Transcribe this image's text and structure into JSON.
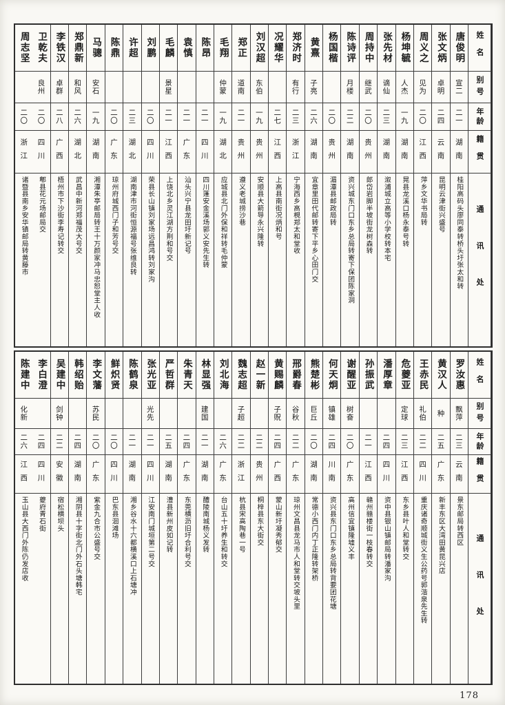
{
  "page_number": "178",
  "headers": {
    "name": "姓名",
    "alias": "别号",
    "age": "年龄",
    "native": "籍贯",
    "address": "通讯处"
  },
  "tables": [
    {
      "people": [
        {
          "name": "唐俊明",
          "alias": "宣二",
          "age": "二一",
          "native": "湖南",
          "address": "桂阳高码头廖同泰转桥头圩张太和转"
        },
        {
          "name": "张文炳",
          "alias": "卓明",
          "age": "二四",
          "native": "云南",
          "address": "昆明云津街兴盛号"
        },
        {
          "name": "周义之",
          "alias": "见为",
          "age": "二〇",
          "native": "江西",
          "address": "萍乡文华书局转"
        },
        {
          "name": "杨坤毓",
          "alias": "人杰",
          "age": "一九",
          "native": "湖南",
          "address": "晃县龙溪口杨永泰号转"
        },
        {
          "name": "张先材",
          "alias": "谪仙",
          "age": "二三",
          "native": "湖南",
          "address": "溆浦城立高等小学校转本宅"
        },
        {
          "name": "周持中",
          "alias": "继武",
          "age": "二〇",
          "native": "贵州",
          "address": "郎岱岩脚半坡街龙树森转"
        },
        {
          "name": "陈诗评",
          "alias": "月楼",
          "age": "二二",
          "native": "湖南",
          "address": "资兴城东门口东乡总局转寄下保团陈家洞"
        },
        {
          "name": "杨国楷",
          "alias": "",
          "age": "二〇",
          "native": "贵州",
          "address": "湄潭县邮政局转"
        },
        {
          "name": "黄熹",
          "alias": "子亮",
          "age": "二六",
          "native": "湖南",
          "address": "宜章里田代邮转寄下平乡心田门交"
        },
        {
          "name": "郑济时",
          "alias": "有行",
          "age": "二三",
          "native": "浙江",
          "address": "宁海西乡高梘郑太和堂收"
        },
        {
          "name": "况耀华",
          "alias": "",
          "age": "二七",
          "native": "江西",
          "address": "上高县南街况炳和号"
        },
        {
          "name": "刘汉超",
          "alias": "东伯",
          "age": "一九",
          "native": "贵州",
          "address": "安顺县大箭导永兴隆转"
        },
        {
          "name": "郑正",
          "alias": "道南",
          "age": "二一",
          "native": "贵州",
          "address": "遵义老城捞沙巷"
        },
        {
          "name": "毛翔",
          "alias": "仲蒙",
          "age": "一九",
          "native": "湖北",
          "address": "应城县北门外保和祥转毛仲蒙"
        },
        {
          "name": "陈昂",
          "alias": "",
          "age": "二一",
          "native": "四川",
          "address": "四川蓬安金溪场郭义安先生转"
        },
        {
          "name": "袁慎",
          "alias": "",
          "age": "二一",
          "native": "广东",
          "address": "汕头兴宁县龙田圩新记号"
        },
        {
          "name": "毛麟",
          "alias": "景星",
          "age": "二一",
          "native": "江西",
          "address": "上饶北乡灵江湖方荆和号交"
        },
        {
          "name": "刘鹏",
          "alias": "",
          "age": "二〇",
          "native": "四川",
          "address": "荣县长山镇刘家场远昌鸿转刘家沟"
        },
        {
          "name": "许超",
          "alias": "",
          "age": "二三",
          "native": "湖北",
          "address": "湖南津市河街恒源福号张维良转"
        },
        {
          "name": "陈鼎",
          "alias": "",
          "age": "二〇",
          "native": "广东",
          "address": "琼州府城西门子和芳号交"
        },
        {
          "name": "马骢",
          "alias": "安石",
          "age": "一九",
          "native": "湖南",
          "address": "湘潭朱亭邮局转王十万颜家冲马忠恕堂主人收"
        },
        {
          "name": "郑鼎新",
          "alias": "和风",
          "age": "二六",
          "native": "湖北",
          "address": "武昌中新河郑福茂大号交"
        },
        {
          "name": "李铁汉",
          "alias": "卓群",
          "age": "二八",
          "native": "广西",
          "address": "梧州市下沙街李寿记转交"
        },
        {
          "name": "卫乾夫",
          "alias": "良州",
          "age": "二〇",
          "native": "四川",
          "address": "郫县花元场邮局交"
        },
        {
          "name": "周志坚",
          "alias": "",
          "age": "二〇",
          "native": "浙江",
          "address": "诸暨县南乡安华镇邮局转黄藤市"
        }
      ]
    },
    {
      "people": [
        {
          "name": "罗汝惠",
          "alias": "飘萍",
          "age": "二三",
          "native": "云南",
          "address": "景东邮局转西区"
        },
        {
          "name": "黄汉人",
          "alias": "种",
          "age": "二五",
          "native": "广东",
          "address": "新丰东区大湾田黄昆兴店"
        },
        {
          "name": "王赤民",
          "alias": "礼伯",
          "age": "二二",
          "native": "四川",
          "address": "重庆诸奇顺城街义生公药号郭湝泉先生转"
        },
        {
          "name": "危夔亚",
          "alias": "定球",
          "age": "二三",
          "native": "江西",
          "address": "东乡县叶人和堂转交"
        },
        {
          "name": "潘厚章",
          "alias": "",
          "age": "二四",
          "native": "四川",
          "address": "资中县银山镇邮局转潘家沟"
        },
        {
          "name": "孙振武",
          "alias": "",
          "age": "二一",
          "native": "江西",
          "address": "赣州赣楼街一枝春转交"
        },
        {
          "name": "谢醒亚",
          "alias": "树奋",
          "age": "二〇",
          "native": "广东",
          "address": "高州信宜镇隆墟义丰"
        },
        {
          "name": "何天炯",
          "alias": "镇雄",
          "age": "二四",
          "native": "川南",
          "address": "资兴县东门口东乡总局转背要团花塘"
        },
        {
          "name": "熊楚彬",
          "alias": "巨丘",
          "age": "二〇",
          "native": "湖南",
          "address": "常德小西门内丁正隆转架桥"
        },
        {
          "name": "邢爵春",
          "alias": "谷秋",
          "age": "二二",
          "native": "广东",
          "address": "琼州文昌县龙马市人和堂转交坡头里"
        },
        {
          "name": "黄赐麟",
          "alias": "子贶",
          "age": "二四",
          "native": "广西",
          "address": "蒙山新圩凝秀郁交"
        },
        {
          "name": "赵一新",
          "alias": "",
          "age": "二二",
          "native": "贵州",
          "address": "桐梓县东大街交"
        },
        {
          "name": "魏志超",
          "alias": "子超",
          "age": "二二",
          "native": "浙江",
          "address": "杭县宋高陶巷一号"
        },
        {
          "name": "刘北海",
          "alias": "",
          "age": "二六",
          "native": "广东",
          "address": "台山五十圩养生和转交"
        },
        {
          "name": "林显强",
          "alias": "建国",
          "age": "二一",
          "native": "湖南",
          "address": "醴陵南城杨义发转"
        },
        {
          "name": "朱青天",
          "alias": "",
          "age": "二四",
          "native": "广东",
          "address": "东莞横沥旧圩合利号交"
        },
        {
          "name": "严哲群",
          "alias": "",
          "age": "二五",
          "native": "湖南",
          "address": "澧县新州皮如记转"
        },
        {
          "name": "张光亚",
          "alias": "光先",
          "age": "二一",
          "native": "四川",
          "address": "江安南门城垣第二号交"
        },
        {
          "name": "陈鹤泉",
          "alias": "",
          "age": "二一",
          "native": "湖南",
          "address": "湘乡谷水十六都横溪口上石塘冲"
        },
        {
          "name": "鲜炽贤",
          "alias": "",
          "age": "二〇",
          "native": "四川",
          "address": "巴东县洄滩场"
        },
        {
          "name": "李文藩",
          "alias": "苏民",
          "age": "二〇",
          "native": "广东",
          "address": "紫金九合市公盛号交"
        },
        {
          "name": "韩绍贻",
          "alias": "",
          "age": "二四",
          "native": "湖南",
          "address": "湘阴县十字街北门外石头塘韩宅"
        },
        {
          "name": "吴建中",
          "alias": "剑钟",
          "age": "二二",
          "native": "安徽",
          "address": "宿松横坝头"
        },
        {
          "name": "李白澄",
          "alias": "",
          "age": "二四",
          "native": "四川",
          "address": "夔府青石街"
        },
        {
          "name": "陈建中",
          "alias": "化新",
          "age": "二六",
          "native": "江西",
          "address": "玉山县大西门外陈仍发店收"
        }
      ]
    }
  ]
}
